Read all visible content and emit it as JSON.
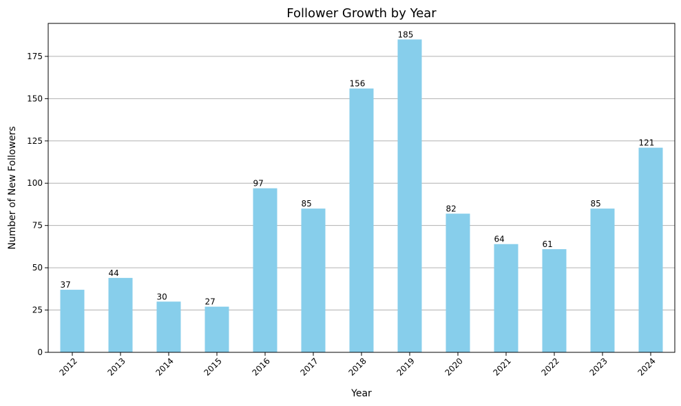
{
  "chart_data": {
    "type": "bar",
    "title": "Follower Growth by Year",
    "xlabel": "Year",
    "ylabel": "Number of New Followers",
    "categories": [
      "2012",
      "2013",
      "2014",
      "2015",
      "2016",
      "2017",
      "2018",
      "2019",
      "2020",
      "2021",
      "2022",
      "2023",
      "2024"
    ],
    "values": [
      37,
      44,
      30,
      27,
      97,
      85,
      156,
      185,
      82,
      64,
      61,
      85,
      121
    ],
    "ylim": [
      0,
      194.5
    ],
    "yticks": [
      0,
      25,
      50,
      75,
      100,
      125,
      150,
      175
    ],
    "grid": "horizontal",
    "bar_color": "#87ceeb",
    "grid_color": "#b0b0b0",
    "x_tick_rotation": -45
  }
}
